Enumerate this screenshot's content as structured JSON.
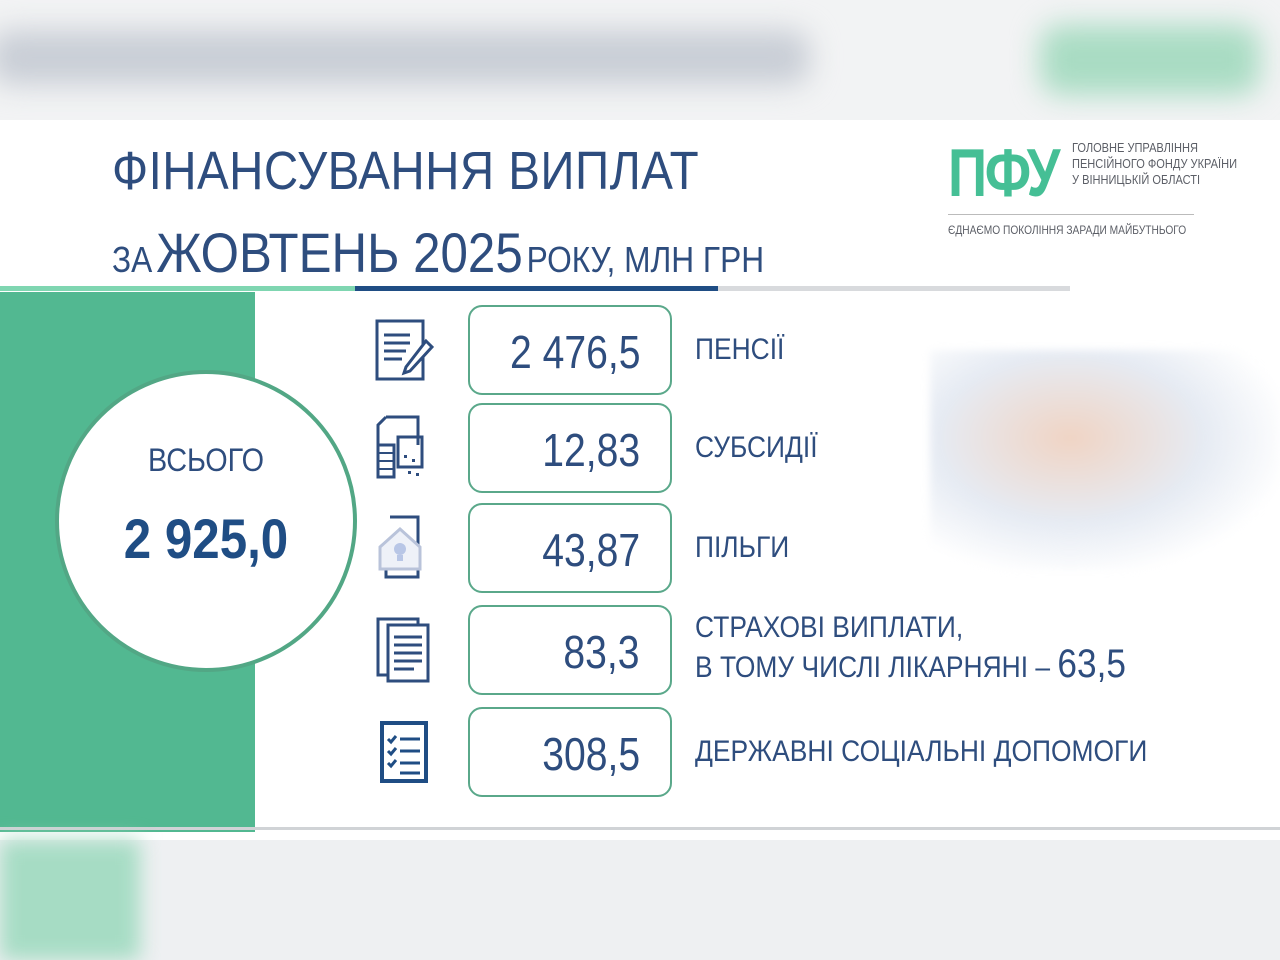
{
  "title": {
    "line1": "ФІНАНСУВАННЯ ВИПЛАТ",
    "prefix": "ЗА",
    "period": "ЖОВТЕНЬ 2025",
    "suffix": "РОКУ, МЛН ГРН"
  },
  "logo": {
    "mark": "ПФУ",
    "org_lines": [
      "ГОЛОВНЕ УПРАВЛІННЯ",
      "ПЕНСІЙНОГО ФОНДУ УКРАЇНИ",
      "У ВІННИЦЬКІЙ ОБЛАСТІ"
    ],
    "slogan": "ЄДНАЄМО ПОКОЛІННЯ ЗАРАДИ МАЙБУТНЬОГО"
  },
  "colors": {
    "green": "#52b891",
    "navy": "#1f4d84",
    "text": "#2e4d7e"
  },
  "total": {
    "label": "ВСЬОГО",
    "value": "2 925,0"
  },
  "items": [
    {
      "icon": "document-pen-icon",
      "value": "2 476,5",
      "label": "ПЕНСІЇ"
    },
    {
      "icon": "documents-calculator-icon",
      "value": "12,83",
      "label": "СУБСИДІЇ"
    },
    {
      "icon": "house-lightbulb-icon",
      "value": "43,87",
      "label": "ПІЛЬГИ"
    },
    {
      "icon": "documents-list-icon",
      "value": "83,3",
      "label": "СТРАХОВІ ВИПЛАТИ,",
      "label2": "В ТОМУ ЧИСЛІ ЛІКАРНЯНІ –",
      "label2_value": "63,5"
    },
    {
      "icon": "checklist-icon",
      "value": "308,5",
      "label": "ДЕРЖАВНІ СОЦІАЛЬНІ ДОПОМОГИ"
    }
  ]
}
